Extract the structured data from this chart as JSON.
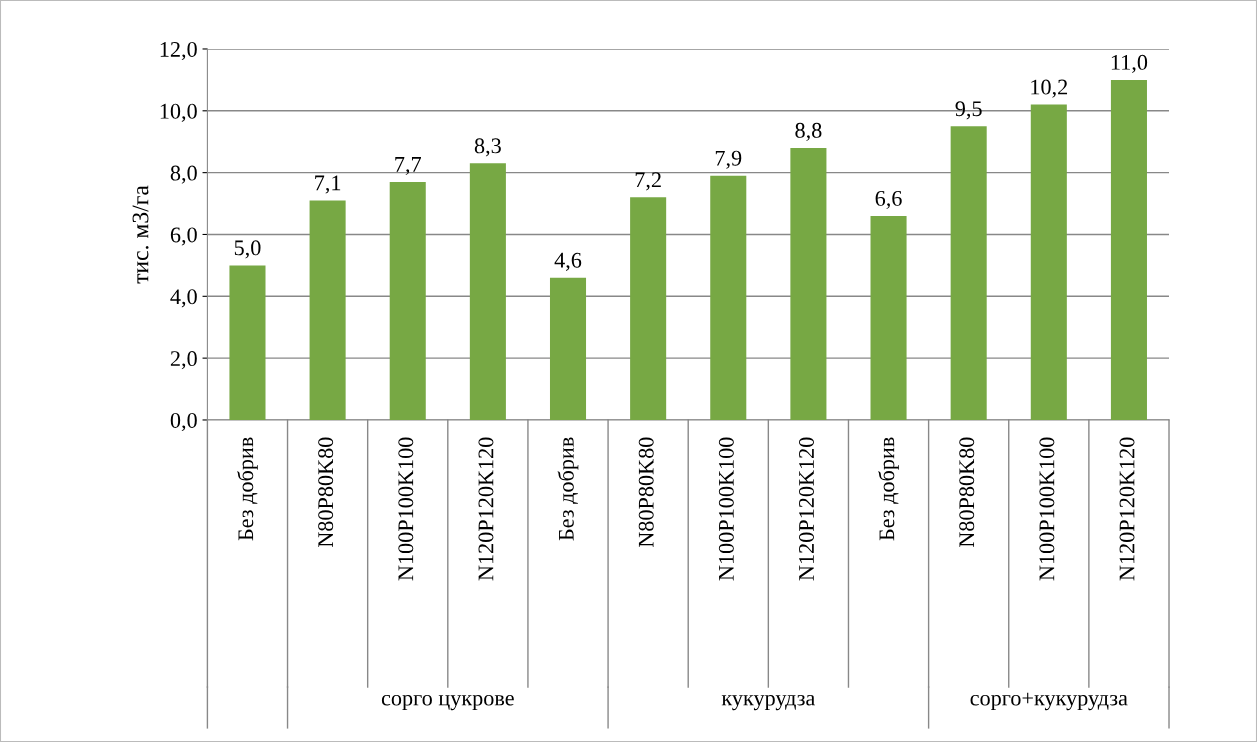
{
  "chart_data": {
    "type": "bar",
    "ylabel": "тис. м3/га",
    "categories": [
      "Без добрив",
      "N80P80K80",
      "N100P100K100",
      "N120P120K120",
      "Без добрив",
      "N80P80K80",
      "N100P100K100",
      "N120P120K120",
      "Без добрив",
      "N80P80K80",
      "N100P100K100",
      "N120P120K120"
    ],
    "values": [
      5.0,
      7.1,
      7.7,
      8.3,
      4.6,
      7.2,
      7.9,
      8.8,
      6.6,
      9.5,
      10.2,
      11.0
    ],
    "value_labels": [
      "5,0",
      "7,1",
      "7,7",
      "8,3",
      "4,6",
      "7,2",
      "7,9",
      "8,8",
      "6,6",
      "9,5",
      "10,2",
      "11,0"
    ],
    "color": "#77a844",
    "ylim": [
      0,
      12
    ],
    "yticks": [
      {
        "value": 0,
        "label": "0,0"
      },
      {
        "value": 2,
        "label": "2,0"
      },
      {
        "value": 4,
        "label": "4,0"
      },
      {
        "value": 6,
        "label": "6,0"
      },
      {
        "value": 8,
        "label": "8,0"
      },
      {
        "value": 10,
        "label": "10,0"
      },
      {
        "value": 12,
        "label": "12,0"
      }
    ],
    "grid": "y",
    "annotations": [
      "сорго цукрове",
      "кукурудза",
      "сорго+кукурудза"
    ]
  }
}
